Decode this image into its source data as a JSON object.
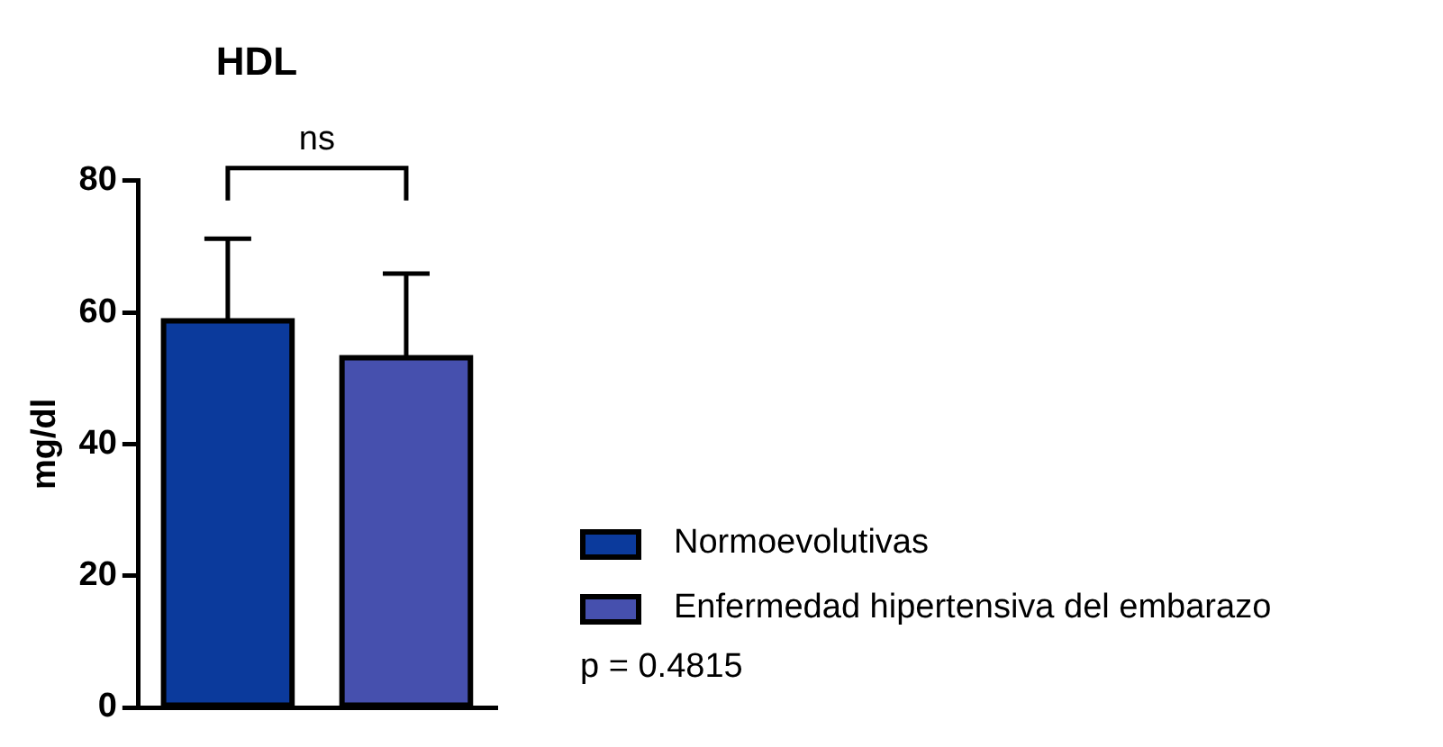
{
  "chart_data": {
    "type": "bar",
    "title": "HDL",
    "ylabel": "mg/dl",
    "categories": [
      null,
      null
    ],
    "series": [
      {
        "name": "Normoevolutivas",
        "color": "#0b3a9c",
        "values": [
          58.7,
          null
        ],
        "errors": [
          12.5,
          null
        ]
      },
      {
        "name": "Enfermedad hipertensiva del embarazo",
        "color": "#4650ae",
        "values": [
          null,
          53.1
        ],
        "errors": [
          null,
          12.8
        ]
      }
    ],
    "ylim": [
      0,
      80
    ],
    "yticks": [
      0,
      20,
      40,
      60,
      80
    ],
    "grid": false,
    "legend": "right",
    "tick_labels": "y",
    "annotations": [
      "ns",
      "p = 0.4815"
    ]
  }
}
